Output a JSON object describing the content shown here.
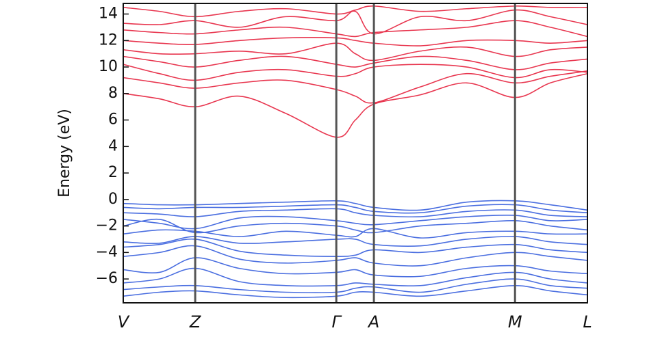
{
  "chart_data": {
    "type": "line",
    "y_label": "Energy (eV)",
    "x": [
      0,
      0.078,
      0.155,
      0.25,
      0.35,
      0.459,
      0.5,
      0.54,
      0.64,
      0.74,
      0.844,
      0.92,
      1.0
    ],
    "xlim": [
      0,
      1.0
    ],
    "xticks": [
      {
        "value": 0,
        "label": "V"
      },
      {
        "value": 0.155,
        "label": "Z"
      },
      {
        "value": 0.459,
        "label": "Γ"
      },
      {
        "value": 0.54,
        "label": "A"
      },
      {
        "value": 0.844,
        "label": "M"
      },
      {
        "value": 1.0,
        "label": "L"
      }
    ],
    "ylim": [
      -7.8,
      14.8
    ],
    "yticks": [
      {
        "value": -6,
        "label": "−6"
      },
      {
        "value": -4,
        "label": "−4"
      },
      {
        "value": -2,
        "label": "−2"
      },
      0,
      2,
      4,
      6,
      8,
      10,
      12,
      14
    ],
    "series": [
      {
        "color": "#e8364f",
        "values": [
          8.0,
          7.6,
          7.0,
          7.8,
          6.5,
          4.7,
          6.0,
          7.2,
          7.9,
          8.8,
          7.7,
          8.8,
          9.5
        ]
      },
      {
        "color": "#e8364f",
        "values": [
          9.2,
          8.8,
          8.4,
          8.8,
          9.0,
          8.3,
          7.8,
          7.3,
          8.5,
          9.5,
          8.8,
          9.3,
          9.7
        ]
      },
      {
        "color": "#e8364f",
        "values": [
          10.2,
          9.5,
          9.0,
          9.6,
          9.8,
          9.3,
          9.5,
          10.0,
          10.2,
          10.0,
          9.2,
          9.8,
          9.6
        ]
      },
      {
        "color": "#e8364f",
        "values": [
          10.8,
          10.4,
          10.0,
          10.5,
          10.8,
          10.2,
          10.0,
          10.3,
          10.8,
          10.5,
          9.8,
          10.3,
          10.6
        ]
      },
      {
        "color": "#e8364f",
        "values": [
          11.3,
          11.0,
          11.0,
          11.2,
          11.0,
          11.8,
          11.0,
          10.5,
          11.2,
          11.5,
          10.8,
          11.3,
          11.5
        ]
      },
      {
        "color": "#e8364f",
        "values": [
          12.0,
          11.8,
          11.7,
          12.0,
          12.2,
          12.2,
          12.0,
          11.8,
          11.6,
          12.0,
          12.0,
          11.8,
          12.0
        ]
      },
      {
        "color": "#e8364f",
        "values": [
          12.8,
          12.6,
          12.5,
          12.8,
          13.0,
          12.5,
          12.3,
          12.6,
          12.8,
          13.0,
          13.5,
          13.0,
          12.3
        ]
      },
      {
        "color": "#e8364f",
        "values": [
          13.3,
          13.2,
          13.5,
          13.0,
          13.8,
          13.5,
          14.2,
          12.5,
          13.8,
          13.5,
          14.3,
          13.8,
          13.2
        ]
      },
      {
        "color": "#e8364f",
        "values": [
          14.5,
          14.2,
          13.8,
          14.2,
          14.4,
          14.0,
          14.3,
          14.6,
          14.2,
          14.4,
          14.6,
          14.5,
          14.5
        ]
      },
      {
        "color": "#4a6ee0",
        "values": [
          -0.3,
          -0.4,
          -0.4,
          -0.3,
          -0.2,
          -0.1,
          -0.3,
          -0.6,
          -0.8,
          -0.2,
          -0.1,
          -0.4,
          -0.8
        ]
      },
      {
        "color": "#4a6ee0",
        "values": [
          -0.6,
          -0.7,
          -0.6,
          -0.6,
          -0.5,
          -0.4,
          -0.6,
          -0.9,
          -1.0,
          -0.5,
          -0.4,
          -0.8,
          -1.0
        ]
      },
      {
        "color": "#4a6ee0",
        "values": [
          -1.0,
          -1.1,
          -1.3,
          -0.9,
          -0.8,
          -0.7,
          -1.0,
          -1.2,
          -1.3,
          -0.9,
          -0.8,
          -1.2,
          -1.3
        ]
      },
      {
        "color": "#4a6ee0",
        "values": [
          -1.5,
          -1.8,
          -2.2,
          -1.4,
          -1.3,
          -1.6,
          -1.8,
          -1.9,
          -1.6,
          -1.3,
          -1.2,
          -1.6,
          -1.5
        ]
      },
      {
        "color": "#4a6ee0",
        "values": [
          -2.0,
          -1.5,
          -2.5,
          -2.0,
          -1.8,
          -2.0,
          -2.3,
          -2.5,
          -2.0,
          -1.8,
          -1.6,
          -2.0,
          -2.3
        ]
      },
      {
        "color": "#4a6ee0",
        "values": [
          -2.6,
          -2.3,
          -2.4,
          -2.8,
          -2.4,
          -2.7,
          -2.8,
          -2.2,
          -2.9,
          -2.5,
          -2.4,
          -2.6,
          -2.6
        ]
      },
      {
        "color": "#4a6ee0",
        "values": [
          -3.2,
          -3.3,
          -2.8,
          -3.3,
          -3.2,
          -3.0,
          -3.0,
          -3.4,
          -3.5,
          -3.0,
          -2.8,
          -3.2,
          -3.4
        ]
      },
      {
        "color": "#4a6ee0",
        "values": [
          -3.6,
          -3.4,
          -3.0,
          -3.9,
          -4.2,
          -4.3,
          -4.2,
          -3.8,
          -4.0,
          -3.6,
          -3.4,
          -3.8,
          -4.0
        ]
      },
      {
        "color": "#4a6ee0",
        "values": [
          -4.3,
          -4.0,
          -3.5,
          -4.5,
          -4.8,
          -4.6,
          -4.4,
          -4.8,
          -5.0,
          -4.4,
          -4.0,
          -4.3,
          -4.6
        ]
      },
      {
        "color": "#4a6ee0",
        "values": [
          -5.3,
          -5.5,
          -4.4,
          -5.2,
          -5.6,
          -5.5,
          -5.3,
          -5.7,
          -5.8,
          -5.2,
          -5.0,
          -5.4,
          -5.6
        ]
      },
      {
        "color": "#4a6ee0",
        "values": [
          -6.3,
          -6.0,
          -5.2,
          -6.2,
          -6.5,
          -6.5,
          -6.3,
          -6.4,
          -6.5,
          -5.9,
          -5.5,
          -6.0,
          -6.3
        ]
      },
      {
        "color": "#4a6ee0",
        "values": [
          -6.8,
          -6.6,
          -6.5,
          -6.8,
          -7.0,
          -7.0,
          -6.7,
          -6.6,
          -7.0,
          -6.4,
          -6.0,
          -6.5,
          -6.7
        ]
      },
      {
        "color": "#4a6ee0",
        "values": [
          -7.3,
          -7.0,
          -6.9,
          -7.2,
          -7.4,
          -7.3,
          -7.0,
          -7.0,
          -7.3,
          -6.9,
          -6.5,
          -6.9,
          -7.2
        ]
      }
    ]
  }
}
